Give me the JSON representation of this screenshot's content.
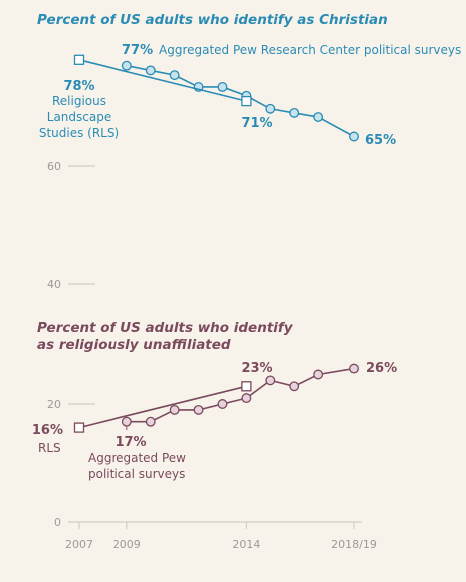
{
  "colors": {
    "christian": "#2a8cb5",
    "christian_fill": "#c7e3ee",
    "unaffiliated": "#7a4a5e",
    "unaffiliated_fill": "#e6d3db",
    "tick": "#9a9a9a",
    "grid": "#c8c4bc"
  },
  "chart_data": [
    {
      "type": "line",
      "title": "Percent of US adults who identify as Christian",
      "ylim": [
        40,
        80
      ],
      "yticks": [
        60,
        40
      ],
      "x_range": [
        2007,
        2019
      ],
      "series": [
        {
          "name": "Aggregated Pew Research Center political surveys",
          "marker": "circle",
          "x": [
            2009,
            2010,
            2011,
            2012,
            2013,
            2014,
            2015,
            2016,
            2017,
            2018.5
          ],
          "y": [
            77,
            76.2,
            75.4,
            73.4,
            73.4,
            71.9,
            69.7,
            69,
            68.3,
            65
          ]
        },
        {
          "name": "Religious Landscape Studies (RLS)",
          "marker": "square",
          "x": [
            2007,
            2014
          ],
          "y": [
            78,
            71
          ]
        }
      ],
      "annotations": {
        "pew_start": "77%",
        "pew_label": "Aggregated Pew Research Center political surveys",
        "rls_start": "78%",
        "rls_label_lines": [
          "Religious",
          "Landscape",
          "Studies (RLS)"
        ],
        "rls_end": "71%",
        "pew_end": "65%"
      }
    },
    {
      "type": "line",
      "title_lines": [
        "Percent of US adults who identify",
        "as religiously unaffiliated"
      ],
      "ylim": [
        0,
        30
      ],
      "yticks": [
        20,
        0
      ],
      "x_range": [
        2007,
        2019
      ],
      "xticks": [
        "2007",
        "2009",
        "2014",
        "2018/19"
      ],
      "series": [
        {
          "name": "Aggregated Pew political surveys",
          "marker": "circle",
          "x": [
            2009,
            2010,
            2011,
            2012,
            2013,
            2014,
            2015,
            2016,
            2017,
            2018.5
          ],
          "y": [
            17,
            17,
            19,
            19,
            20,
            21,
            24,
            23,
            25,
            26
          ]
        },
        {
          "name": "RLS",
          "marker": "square",
          "x": [
            2007,
            2014
          ],
          "y": [
            16,
            23
          ]
        }
      ],
      "annotations": {
        "rls_start": "16%",
        "rls_label": "RLS",
        "rls_end": "23%",
        "pew_start": "17%",
        "pew_label_lines": [
          "Aggregated Pew",
          "political surveys"
        ],
        "pew_end": "26%"
      }
    }
  ]
}
